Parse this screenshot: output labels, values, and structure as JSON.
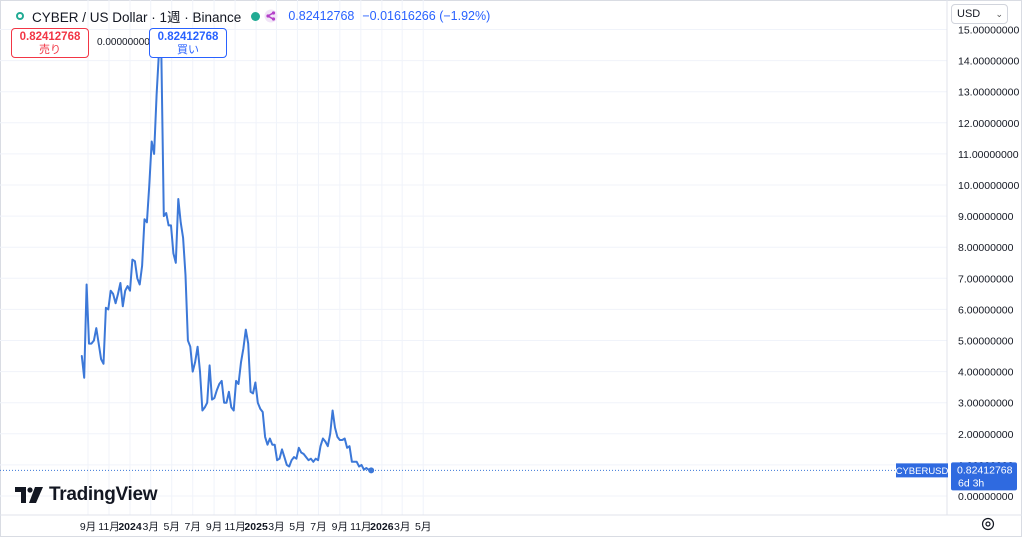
{
  "header": {
    "symbol_title": "CYBER / US Dollar · 1週 · Binance",
    "last_value": "0.82412768",
    "change": "−0.01616266 (−1.92%)"
  },
  "trade": {
    "sell_price": "0.82412768",
    "sell_label": "売り",
    "spread": "0.00000000",
    "buy_price": "0.82412768",
    "buy_label": "買い"
  },
  "currency_selector": "USD",
  "logo_text": "TradingView",
  "price_label": {
    "symbol": "CYBERUSD",
    "price": "0.82412768",
    "countdown": "6d 3h"
  },
  "colors": {
    "line": "#3c78d8",
    "accent": "#2962ff",
    "sell": "#f23645",
    "grid": "#f0f3fa",
    "status_green": "#22ab94"
  },
  "chart_data": {
    "type": "line",
    "x_axis_labels": [
      "9月",
      "11月",
      "2024",
      "3月",
      "5月",
      "7月",
      "9月",
      "11月",
      "2025",
      "3月",
      "5月",
      "7月",
      "9月",
      "11月",
      "2026",
      "3月",
      "5月"
    ],
    "x_axis_label_dates": [
      "2023-09-01",
      "2023-11-01",
      "2024-01-01",
      "2024-03-01",
      "2024-05-01",
      "2024-07-01",
      "2024-09-01",
      "2024-11-01",
      "2025-01-01",
      "2025-03-01",
      "2025-05-01",
      "2025-07-01",
      "2025-09-01",
      "2025-11-01",
      "2026-01-01",
      "2026-03-01",
      "2026-05-01"
    ],
    "y_ticks": [
      0,
      1,
      2,
      3,
      4,
      5,
      6,
      7,
      8,
      9,
      10,
      11,
      12,
      13,
      14,
      15
    ],
    "y_tick_labels": [
      "0.00000000",
      "1.00000000",
      "2.00000000",
      "3.00000000",
      "4.00000000",
      "5.00000000",
      "6.00000000",
      "7.00000000",
      "8.00000000",
      "9.00000000",
      "10.00000000",
      "11.00000000",
      "12.00000000",
      "13.00000000",
      "14.00000000",
      "15.00000000"
    ],
    "ylim": [
      0,
      15
    ],
    "grid": true,
    "series": [
      {
        "x": [
          "2023-08-14",
          "2023-08-21",
          "2023-08-28",
          "2023-09-04",
          "2023-09-11",
          "2023-09-18",
          "2023-09-25",
          "2023-10-02",
          "2023-10-09",
          "2023-10-16",
          "2023-10-23",
          "2023-10-30",
          "2023-11-06",
          "2023-11-13",
          "2023-11-20",
          "2023-11-27",
          "2023-12-04",
          "2023-12-11",
          "2023-12-18",
          "2023-12-25",
          "2024-01-01",
          "2024-01-08",
          "2024-01-15",
          "2024-01-22",
          "2024-01-29",
          "2024-02-05",
          "2024-02-12",
          "2024-02-19",
          "2024-02-26",
          "2024-03-04",
          "2024-03-11",
          "2024-03-18",
          "2024-03-25",
          "2024-04-01",
          "2024-04-08",
          "2024-04-15",
          "2024-04-22",
          "2024-04-29",
          "2024-05-06",
          "2024-05-13",
          "2024-05-20",
          "2024-05-27",
          "2024-06-03",
          "2024-06-10",
          "2024-06-17",
          "2024-06-24",
          "2024-07-01",
          "2024-07-08",
          "2024-07-15",
          "2024-07-22",
          "2024-07-29",
          "2024-08-05",
          "2024-08-12",
          "2024-08-19",
          "2024-08-26",
          "2024-09-02",
          "2024-09-09",
          "2024-09-16",
          "2024-09-23",
          "2024-09-30",
          "2024-10-07",
          "2024-10-14",
          "2024-10-21",
          "2024-10-28",
          "2024-11-04",
          "2024-11-11",
          "2024-11-18",
          "2024-11-25",
          "2024-12-02",
          "2024-12-09",
          "2024-12-16",
          "2024-12-23",
          "2024-12-30",
          "2025-01-06",
          "2025-01-13",
          "2025-01-20",
          "2025-01-27",
          "2025-02-03",
          "2025-02-10",
          "2025-02-17",
          "2025-02-24",
          "2025-03-03",
          "2025-03-10",
          "2025-03-17",
          "2025-03-24",
          "2025-03-31",
          "2025-04-07",
          "2025-04-14",
          "2025-04-21",
          "2025-04-28",
          "2025-05-05",
          "2025-05-12",
          "2025-05-19",
          "2025-05-26",
          "2025-06-02",
          "2025-06-09",
          "2025-06-16",
          "2025-06-23",
          "2025-06-30",
          "2025-07-07",
          "2025-07-14",
          "2025-07-21",
          "2025-07-28",
          "2025-08-04",
          "2025-08-11",
          "2025-08-18",
          "2025-08-25",
          "2025-09-01",
          "2025-09-08",
          "2025-09-15",
          "2025-09-22",
          "2025-09-29",
          "2025-10-06",
          "2025-10-13",
          "2025-10-20",
          "2025-10-27",
          "2025-11-03",
          "2025-11-10",
          "2025-11-17",
          "2025-11-24",
          "2025-12-01"
        ],
        "y": [
          4.5,
          3.8,
          6.8,
          4.9,
          4.9,
          5.0,
          5.4,
          4.9,
          4.4,
          4.25,
          6.05,
          6.0,
          6.6,
          6.5,
          6.2,
          6.5,
          6.85,
          6.1,
          6.6,
          6.75,
          6.6,
          7.6,
          7.55,
          7.0,
          6.8,
          7.4,
          8.9,
          8.8,
          10.0,
          11.4,
          11.0,
          12.9,
          14.3,
          14.1,
          9.0,
          9.1,
          8.7,
          8.7,
          7.8,
          7.5,
          9.55,
          8.8,
          8.3,
          7.1,
          5.0,
          4.8,
          4.0,
          4.3,
          4.8,
          4.0,
          2.75,
          2.85,
          3.0,
          4.2,
          3.1,
          3.15,
          3.4,
          3.6,
          3.7,
          3.0,
          3.0,
          3.35,
          2.85,
          2.75,
          3.7,
          3.6,
          4.3,
          4.75,
          5.35,
          4.9,
          3.35,
          3.3,
          3.65,
          3.0,
          2.8,
          2.7,
          1.9,
          1.65,
          1.85,
          1.65,
          1.65,
          1.15,
          1.2,
          1.5,
          1.25,
          1.0,
          0.95,
          1.15,
          1.25,
          1.2,
          1.55,
          1.4,
          1.35,
          1.25,
          1.15,
          1.2,
          1.1,
          1.2,
          1.15,
          1.6,
          1.85,
          1.75,
          1.6,
          2.0,
          2.75,
          2.2,
          1.9,
          1.8,
          1.8,
          1.85,
          1.55,
          1.6,
          1.1,
          1.1,
          1.1,
          0.95,
          1.0,
          0.85,
          0.9,
          0.84,
          0.82
        ]
      }
    ],
    "last_point": 0.82412768
  }
}
